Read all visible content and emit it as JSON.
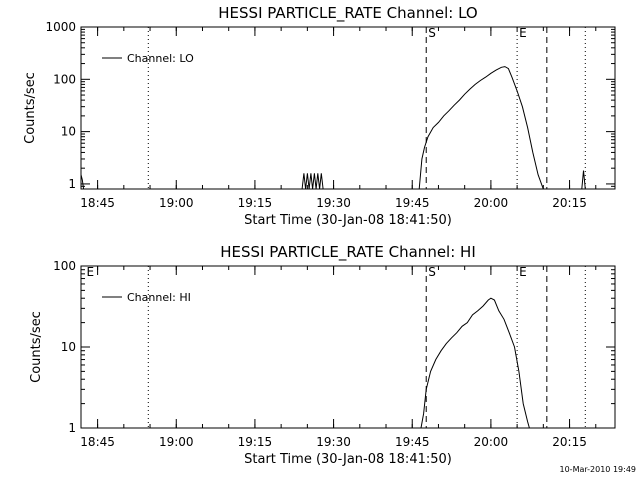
{
  "footer": {
    "timestamp": "10-Mar-2010 19:49"
  },
  "chart_data": [
    {
      "type": "line",
      "title": "HESSI PARTICLE_RATE Channel: LO",
      "xlabel": "Start Time (30-Jan-08 18:41:50)",
      "ylabel": "Counts/sec",
      "y_scale": "log",
      "xlim": [
        "18:41:50",
        "20:23:40"
      ],
      "ylim": [
        0.8,
        1000
      ],
      "x_ticks": [
        "18:45",
        "19:00",
        "19:15",
        "19:30",
        "19:45",
        "20:00",
        "20:15"
      ],
      "y_ticks": [
        "1",
        "10",
        "100",
        "1000"
      ],
      "legend": {
        "position": "top-left",
        "entries": [
          "Channel: LO"
        ]
      },
      "markers": [
        {
          "label": "",
          "time": "18:54:40",
          "style": "dotted"
        },
        {
          "label": "S",
          "time": "19:47:40",
          "style": "dashed"
        },
        {
          "label": "E",
          "time": "20:05:00",
          "style": "dotted"
        },
        {
          "label": "",
          "time": "20:10:40",
          "style": "dashed"
        },
        {
          "label": "",
          "time": "20:18:00",
          "style": "dotted"
        }
      ],
      "series": [
        {
          "name": "Channel: LO",
          "x": [
            "18:41:50",
            "18:42:05",
            "18:42:20",
            "19:24:00",
            "19:24:20",
            "19:24:40",
            "19:25:00",
            "19:25:20",
            "19:25:40",
            "19:26:00",
            "19:26:20",
            "19:26:40",
            "19:27:00",
            "19:27:20",
            "19:27:40",
            "19:28:00",
            "19:46:20",
            "19:46:50",
            "19:47:20",
            "19:48:00",
            "19:49:00",
            "19:50:00",
            "19:51:00",
            "19:52:00",
            "19:53:00",
            "19:54:00",
            "19:55:00",
            "19:56:00",
            "19:57:00",
            "19:58:00",
            "19:59:00",
            "20:00:00",
            "20:01:00",
            "20:02:00",
            "20:02:40",
            "20:03:20",
            "20:04:00",
            "20:05:00",
            "20:06:00",
            "20:07:00",
            "20:08:00",
            "20:09:00",
            "20:10:00",
            "20:10:40",
            "20:17:20",
            "20:17:40",
            "20:18:00"
          ],
          "values": [
            1.5,
            1.2,
            0.8,
            0.8,
            1.6,
            0.8,
            1.6,
            0.8,
            1.6,
            0.8,
            1.6,
            0.8,
            1.6,
            0.8,
            1.6,
            0.8,
            0.8,
            3,
            5,
            8,
            12,
            15,
            20,
            25,
            32,
            40,
            52,
            65,
            80,
            95,
            110,
            130,
            150,
            170,
            175,
            160,
            110,
            60,
            30,
            12,
            4,
            1.5,
            0.8,
            0.8,
            0.8,
            1.8,
            0.8
          ]
        }
      ]
    },
    {
      "type": "line",
      "title": "HESSI PARTICLE_RATE Channel: HI",
      "xlabel": "Start Time (30-Jan-08 18:41:50)",
      "ylabel": "Counts/sec",
      "y_scale": "log",
      "xlim": [
        "18:41:50",
        "20:23:40"
      ],
      "ylim": [
        1,
        100
      ],
      "x_ticks": [
        "18:45",
        "19:00",
        "19:15",
        "19:30",
        "19:45",
        "20:00",
        "20:15"
      ],
      "y_ticks": [
        "1",
        "10",
        "100"
      ],
      "legend": {
        "position": "top-left",
        "entries": [
          "Channel: HI"
        ]
      },
      "markers": [
        {
          "label": "E",
          "time": "18:42:30",
          "style": "none"
        },
        {
          "label": "",
          "time": "18:54:40",
          "style": "dotted"
        },
        {
          "label": "S",
          "time": "19:47:40",
          "style": "dashed"
        },
        {
          "label": "E",
          "time": "20:05:00",
          "style": "dotted"
        },
        {
          "label": "",
          "time": "20:10:40",
          "style": "dashed"
        },
        {
          "label": "",
          "time": "20:18:00",
          "style": "dotted"
        }
      ],
      "series": [
        {
          "name": "Channel: HI",
          "x": [
            "19:46:40",
            "19:47:10",
            "19:47:40",
            "19:48:30",
            "19:49:30",
            "19:50:30",
            "19:51:30",
            "19:52:30",
            "19:53:30",
            "19:54:30",
            "19:55:30",
            "19:56:30",
            "19:57:30",
            "19:58:30",
            "19:59:30",
            "20:00:00",
            "20:00:40",
            "20:01:30",
            "20:02:30",
            "20:03:30",
            "20:04:30",
            "20:05:20",
            "20:06:10",
            "20:07:00",
            "20:07:20"
          ],
          "values": [
            1,
            1.5,
            3,
            5,
            7,
            9,
            11,
            13,
            15,
            18,
            20,
            25,
            28,
            32,
            38,
            40,
            38,
            28,
            22,
            15,
            10,
            5,
            2,
            1.2,
            1
          ]
        }
      ]
    }
  ]
}
